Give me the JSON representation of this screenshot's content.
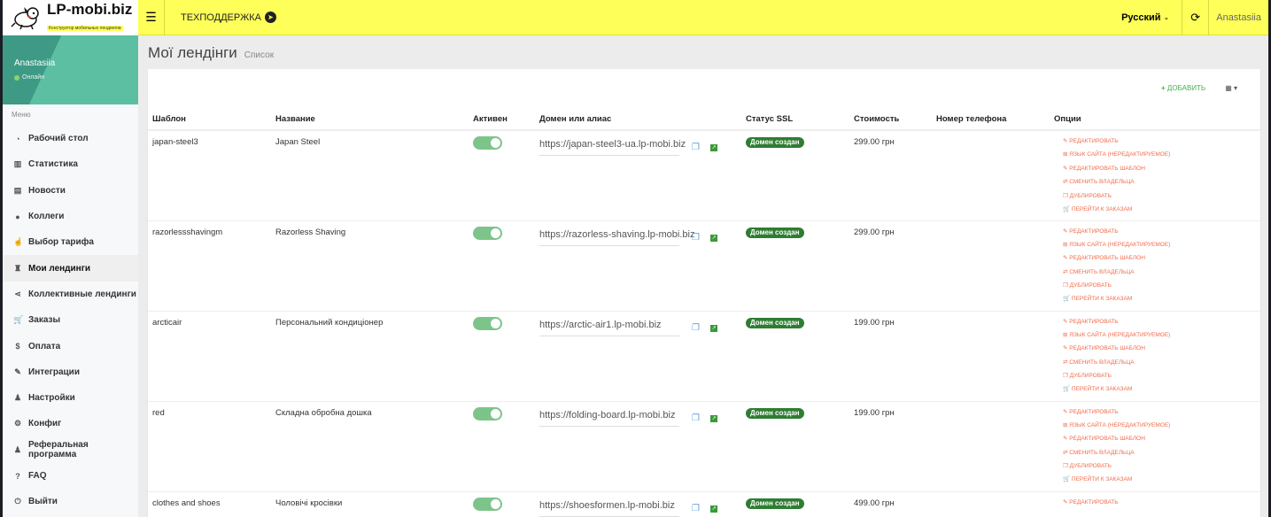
{
  "logo": {
    "name": "LP-mobi.biz",
    "tagline": "Конструктор мобильных лендингов"
  },
  "header": {
    "menu_icon": "hamburger-icon",
    "support": "ТЕХПОДДЕРЖКА",
    "support_icon": "telegram-icon",
    "language": "Русский",
    "refresh_icon": "refresh-icon",
    "user": "Anastasiia",
    "color": "#ffff5a"
  },
  "sidebar": {
    "user": "Anastasiia",
    "status": "Онлайн",
    "menu_heading": "Меню",
    "items": [
      {
        "label": "Рабочий стол",
        "icon": "dashboard-icon",
        "glyph": "◔"
      },
      {
        "label": "Статистика",
        "icon": "bar-chart-icon",
        "glyph": "▥"
      },
      {
        "label": "Новости",
        "icon": "newspaper-icon",
        "glyph": "▤"
      },
      {
        "label": "Коллеги",
        "icon": "users-icon",
        "glyph": "●"
      },
      {
        "label": "Выбор тарифа",
        "icon": "hand-pointer-icon",
        "glyph": "☝"
      },
      {
        "label": "Мои лендинги",
        "icon": "landing-icon",
        "glyph": "♜",
        "active": true
      },
      {
        "label": "Коллективные лендинги",
        "icon": "share-icon",
        "glyph": "⋖"
      },
      {
        "label": "Заказы",
        "icon": "cart-icon",
        "glyph": "🛒"
      },
      {
        "label": "Оплата",
        "icon": "dollar-icon",
        "glyph": "$"
      },
      {
        "label": "Интеграции",
        "icon": "plug-icon",
        "glyph": "✎"
      },
      {
        "label": "Настройки",
        "icon": "user-icon",
        "glyph": "♟"
      },
      {
        "label": "Конфиг",
        "icon": "cogs-icon",
        "glyph": "⚙"
      },
      {
        "label": "Реферальная программа",
        "icon": "user-plus-icon",
        "glyph": "♟"
      },
      {
        "label": "FAQ",
        "icon": "question-icon",
        "glyph": "?"
      },
      {
        "label": "Выйти",
        "icon": "power-icon",
        "glyph": "⏻"
      }
    ]
  },
  "page": {
    "title": "Мої лендінги",
    "subtitle": "Список",
    "add_label": "ДОБАВИТЬ",
    "grid_icon": "table-icon"
  },
  "table": {
    "columns": [
      "Шаблон",
      "Название",
      "Активен",
      "Домен или алиас",
      "Статус SSL",
      "Стоимость",
      "Номер телефона",
      "Опции"
    ],
    "options": [
      "РЕДАКТИРОВАТЬ",
      "ЯЗЫК САЙТА (НЕРЕДАКТИРУЕМОЕ)",
      "РЕДАКТИРОВАТЬ ШАБЛОН",
      "СМЕНИТЬ ВЛАДЕЛЬЦА",
      "ДУБЛИРОВАТЬ",
      "ПЕРЕЙТИ К ЗАКАЗАМ"
    ],
    "option_icons": [
      "✎",
      "⊞",
      "✎",
      "⇄",
      "❐",
      "🛒"
    ],
    "rows": [
      {
        "template": "japan-steel3",
        "name": "Japan Steel",
        "active": true,
        "domain": "https://japan-steel3-ua.lp-mobi.biz",
        "ssl": "Домен создан",
        "price": "299.00 грн",
        "phone": ""
      },
      {
        "template": "razorlessshavingm",
        "name": "Razorless Shaving",
        "active": true,
        "domain": "https://razorless-shaving.lp-mobi.biz",
        "ssl": "Домен создан",
        "price": "299.00 грн",
        "phone": ""
      },
      {
        "template": "arcticair",
        "name": "Персональний кондиціонер",
        "active": true,
        "domain": "https://arctic-air1.lp-mobi.biz",
        "ssl": "Домен создан",
        "price": "199.00 грн",
        "phone": ""
      },
      {
        "template": "red",
        "name": "Складна обробна дошка",
        "active": true,
        "domain": "https://folding-board.lp-mobi.biz",
        "ssl": "Домен создан",
        "price": "199.00 грн",
        "phone": ""
      },
      {
        "template": "clothes and shoes",
        "name": "Чоловічі кросівки",
        "active": true,
        "domain": "https://shoesformen.lp-mobi.biz",
        "ssl": "Домен создан",
        "price": "499.00 грн",
        "phone": ""
      }
    ]
  }
}
